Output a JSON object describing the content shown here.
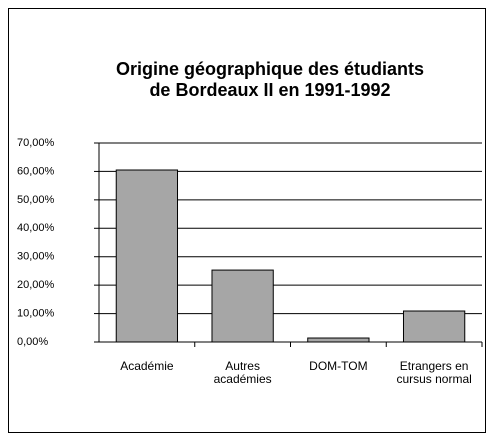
{
  "chart_data": {
    "type": "bar",
    "title": [
      "Origine géographique des étudiants",
      "de Bordeaux II en 1991-1992"
    ],
    "categories": [
      "Académie",
      "Autres académies",
      "DOM-TOM",
      "Etrangers en cursus normal"
    ],
    "values": [
      60.5,
      25.3,
      1.4,
      10.9
    ],
    "color": "#a6a6a6",
    "ylim": [
      0,
      70
    ],
    "yticks": [
      {
        "value": 0,
        "label": "0,00%"
      },
      {
        "value": 10,
        "label": "10,00%"
      },
      {
        "value": 20,
        "label": "20,00%"
      },
      {
        "value": 30,
        "label": "30,00%"
      },
      {
        "value": 40,
        "label": "40,00%"
      },
      {
        "value": 50,
        "label": "50,00%"
      },
      {
        "value": 60,
        "label": "60,00%"
      },
      {
        "value": 70,
        "label": "70,00%"
      }
    ],
    "grid": true
  }
}
